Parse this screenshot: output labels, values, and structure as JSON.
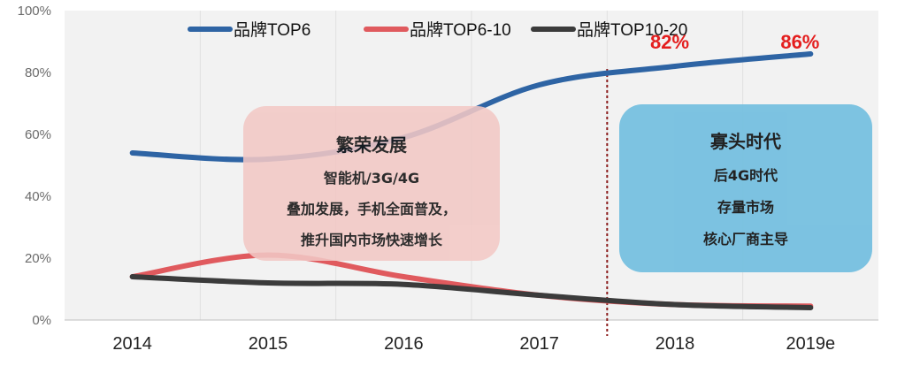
{
  "chart_data": {
    "type": "line",
    "categories": [
      "2014",
      "2015",
      "2016",
      "2017",
      "2018",
      "2019e"
    ],
    "y_ticks": [
      "0%",
      "20%",
      "40%",
      "60%",
      "80%",
      "100%"
    ],
    "ylim": [
      0,
      100
    ],
    "grid": "vertical",
    "legend_position": "top",
    "series": [
      {
        "name": "品牌TOP6",
        "color": "#2e64a4",
        "values": [
          54,
          52,
          59,
          76,
          82,
          86
        ]
      },
      {
        "name": "品牌TOP6-10",
        "color": "#e05a5e",
        "values": [
          14,
          21,
          14,
          8,
          5,
          4.5
        ]
      },
      {
        "name": "品牌TOP10-20",
        "color": "#3b3b3b",
        "values": [
          14,
          12,
          11.5,
          8,
          5,
          4
        ]
      }
    ],
    "annotations": [
      {
        "text": "82%",
        "category": "2018",
        "value": 82
      },
      {
        "text": "86%",
        "category": "2019e",
        "value": 86
      }
    ],
    "divider_between": [
      "2017",
      "2018"
    ]
  },
  "callouts": {
    "boom": {
      "title": "繁荣发展",
      "lines": [
        "智能机/3G/4G",
        "叠加发展，手机全面普及，",
        "推升国内市场快速增长"
      ]
    },
    "oligopoly": {
      "title": "寡头时代",
      "lines": [
        "后4G时代",
        "存量市场",
        "核心厂商主导"
      ]
    }
  }
}
